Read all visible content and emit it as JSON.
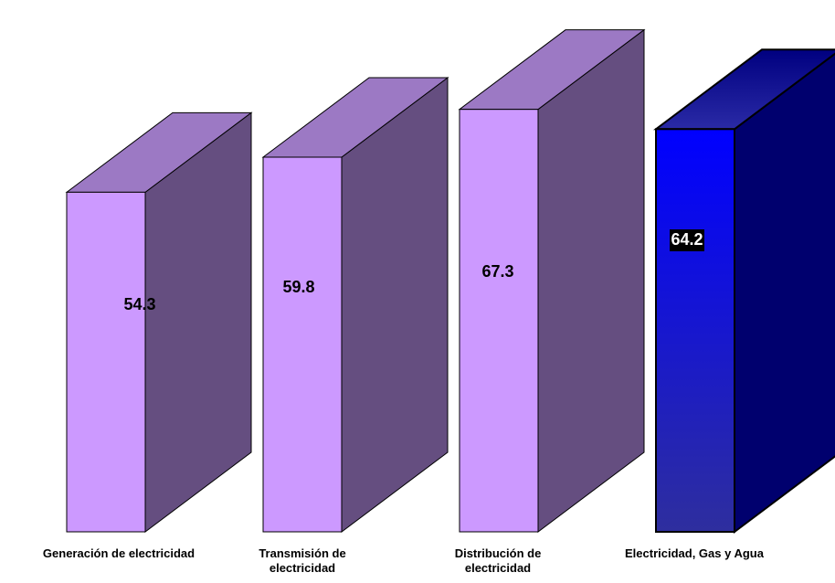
{
  "chart_data": {
    "type": "bar",
    "categories": [
      [
        "Generación de electricidad"
      ],
      [
        "Transmisión de",
        "electricidad"
      ],
      [
        "Distribución de",
        "electricidad"
      ],
      [
        "Electricidad, Gas y Agua"
      ]
    ],
    "values": [
      54.3,
      59.8,
      67.3,
      64.2
    ],
    "value_labels": [
      "54.3",
      "59.8",
      "67.3",
      "64.2"
    ],
    "highlighted_index": 3,
    "grid": false,
    "legend": false
  },
  "colors": {
    "purple_front": "#cc99ff",
    "purple_top": "#9c79c4",
    "purple_side": "#654e80",
    "blue_front_top": "#0000ff",
    "blue_front_bottom": "#2e2e9e",
    "blue_top_light": "#2a2aa6",
    "blue_top_dark": "#000080",
    "blue_side": "#00006e",
    "highlight_label_bg": "#000000",
    "highlight_label_text": "#ffffff",
    "label_text": "#000000"
  }
}
